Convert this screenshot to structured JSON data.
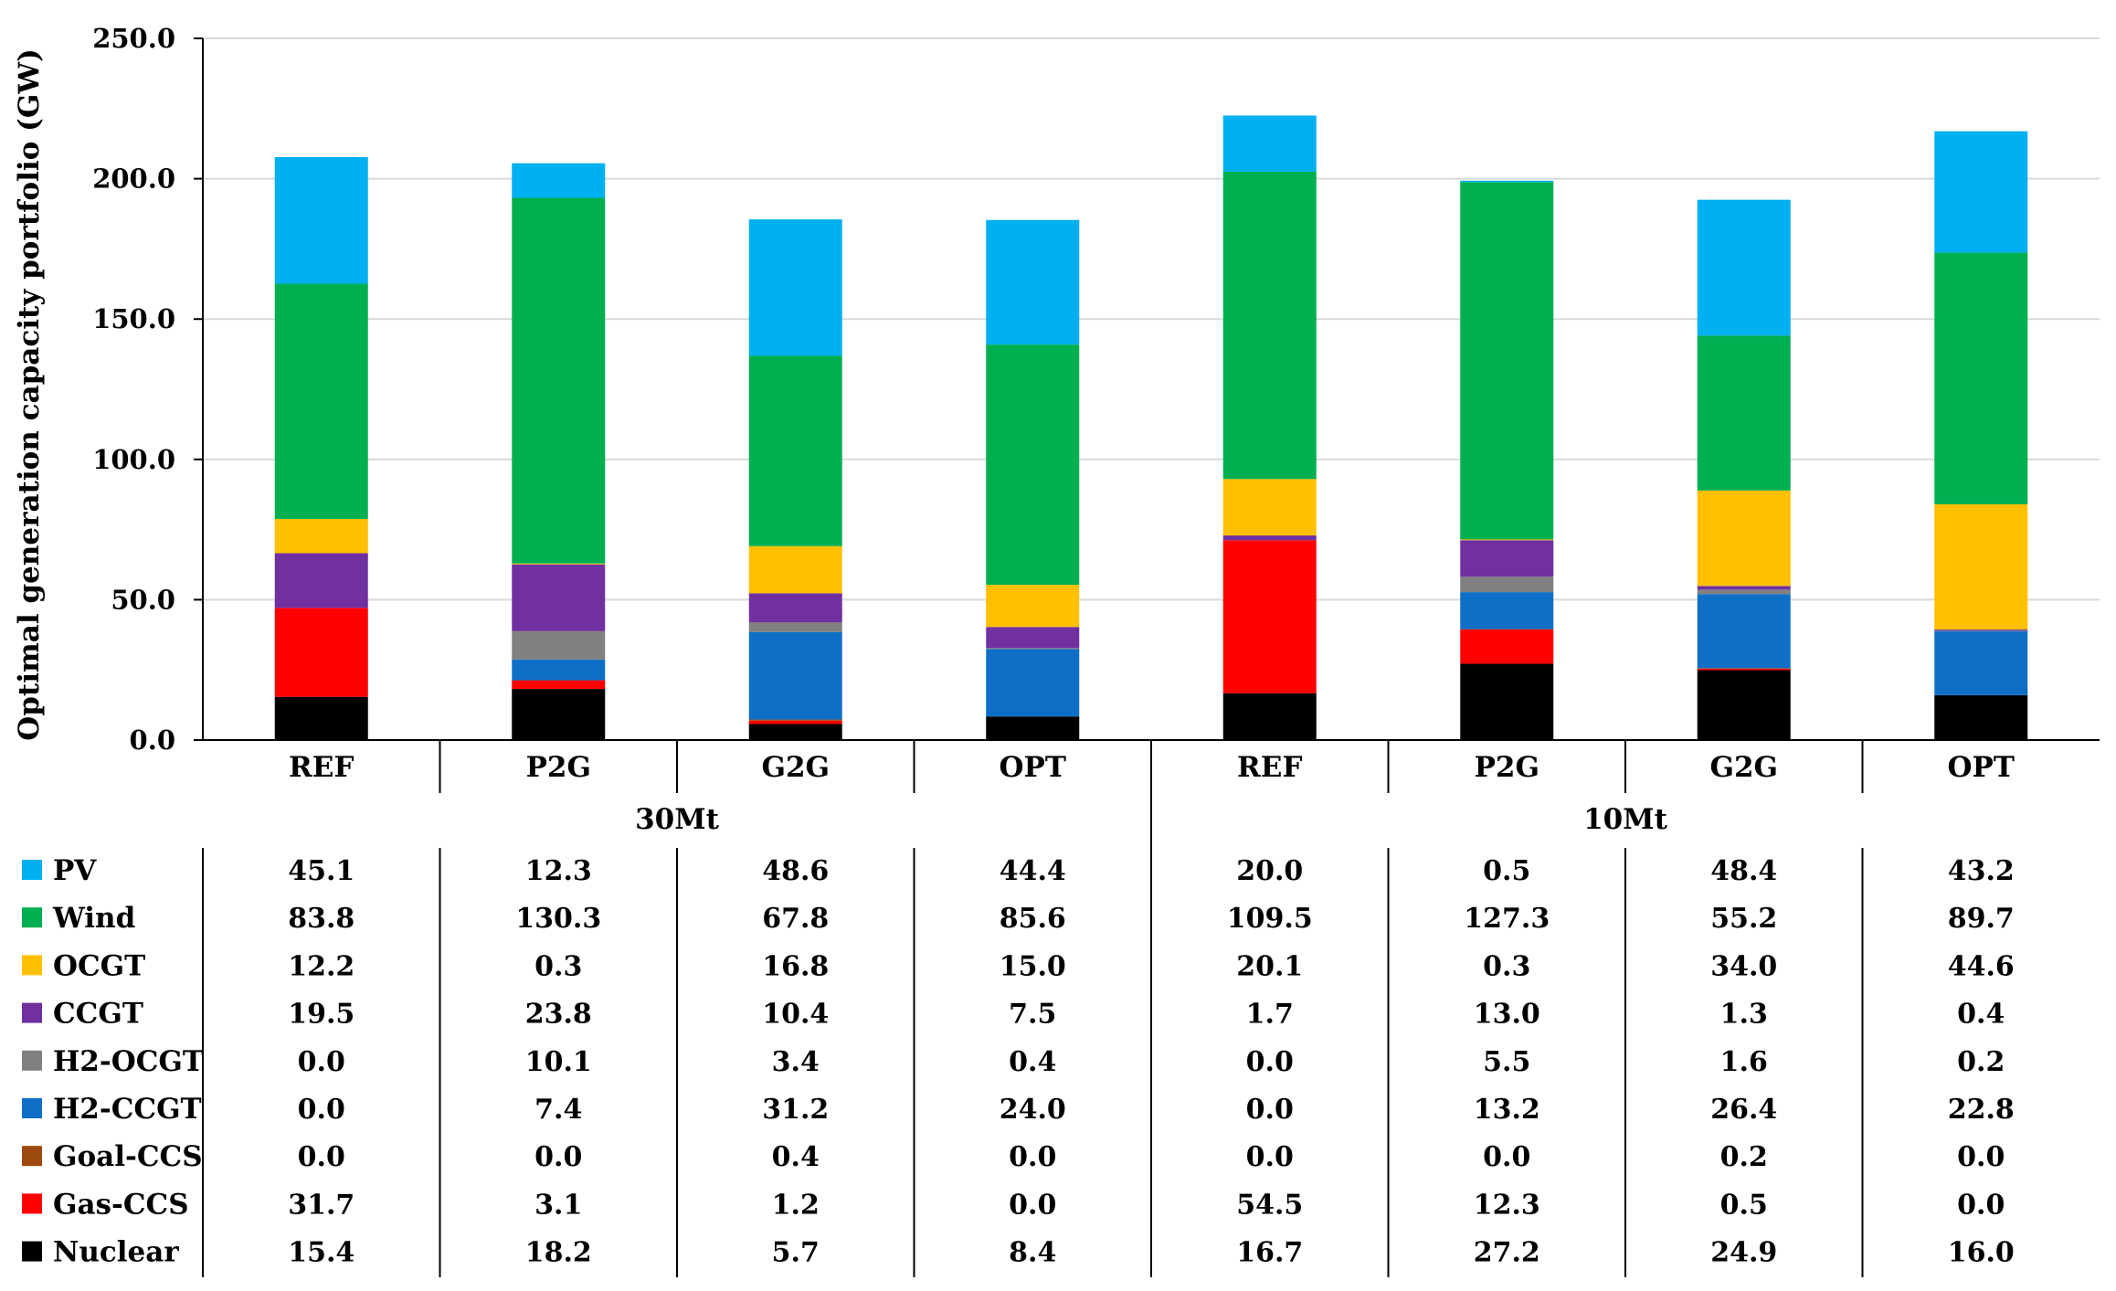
{
  "chart_data": {
    "type": "bar",
    "stacked": true,
    "title": "",
    "xlabel": "",
    "ylabel": "Optimal generation capacity portfolio (GW)",
    "ylim": [
      0,
      250
    ],
    "yticks": [
      "0.0",
      "50.0",
      "100.0",
      "150.0",
      "200.0",
      "250.0"
    ],
    "ytick_values": [
      0,
      50,
      100,
      150,
      200,
      250
    ],
    "grid": true,
    "groups": [
      {
        "label": "30Mt",
        "categories": [
          "REF",
          "P2G",
          "G2G",
          "OPT"
        ]
      },
      {
        "label": "10Mt",
        "categories": [
          "REF",
          "P2G",
          "G2G",
          "OPT"
        ]
      }
    ],
    "categories": [
      "REF",
      "P2G",
      "G2G",
      "OPT",
      "REF",
      "P2G",
      "G2G",
      "OPT"
    ],
    "series": [
      {
        "name": "Nuclear",
        "color": "#000000",
        "values": [
          15.4,
          18.2,
          5.7,
          8.4,
          16.7,
          27.2,
          24.9,
          16.0
        ],
        "labels": [
          "15.4",
          "18.2",
          "5.7",
          "8.4",
          "16.7",
          "27.2",
          "24.9",
          "16.0"
        ]
      },
      {
        "name": "Gas-CCS",
        "color": "#ff0000",
        "values": [
          31.7,
          3.1,
          1.2,
          0.0,
          54.5,
          12.3,
          0.5,
          0.0
        ],
        "labels": [
          "31.7",
          "3.1",
          "1.2",
          "0.0",
          "54.5",
          "12.3",
          "0.5",
          "0.0"
        ]
      },
      {
        "name": "Goal-CCS",
        "color": "#9c4a0e",
        "values": [
          0.0,
          0.0,
          0.4,
          0.0,
          0.0,
          0.0,
          0.2,
          0.0
        ],
        "labels": [
          "0.0",
          "0.0",
          "0.4",
          "0.0",
          "0.0",
          "0.0",
          "0.2",
          "0.0"
        ]
      },
      {
        "name": "H2-CCGT",
        "color": "#0f6fc6",
        "values": [
          0.0,
          7.4,
          31.2,
          24.0,
          0.0,
          13.2,
          26.4,
          22.8
        ],
        "labels": [
          "0.0",
          "7.4",
          "31.2",
          "24.0",
          "0.0",
          "13.2",
          "26.4",
          "22.8"
        ]
      },
      {
        "name": "H2-OCGT",
        "color": "#808080",
        "values": [
          0.0,
          10.1,
          3.4,
          0.4,
          0.0,
          5.5,
          1.6,
          0.2
        ],
        "labels": [
          "0.0",
          "10.1",
          "3.4",
          "0.4",
          "0.0",
          "5.5",
          "1.6",
          "0.2"
        ]
      },
      {
        "name": "CCGT",
        "color": "#7030a0",
        "values": [
          19.5,
          23.8,
          10.4,
          7.5,
          1.7,
          13.0,
          1.3,
          0.4
        ],
        "labels": [
          "19.5",
          "23.8",
          "10.4",
          "7.5",
          "1.7",
          "13.0",
          "1.3",
          "0.4"
        ]
      },
      {
        "name": "OCGT",
        "color": "#ffc000",
        "values": [
          12.2,
          0.3,
          16.8,
          15.0,
          20.1,
          0.3,
          34.0,
          44.6
        ],
        "labels": [
          "12.2",
          "0.3",
          "16.8",
          "15.0",
          "20.1",
          "0.3",
          "34.0",
          "44.6"
        ]
      },
      {
        "name": "Wind",
        "color": "#00b050",
        "values": [
          83.8,
          130.3,
          67.8,
          85.6,
          109.5,
          127.3,
          55.2,
          89.7
        ],
        "labels": [
          "83.8",
          "130.3",
          "67.8",
          "85.6",
          "109.5",
          "127.3",
          "55.2",
          "89.7"
        ]
      },
      {
        "name": "PV",
        "color": "#00b0f0",
        "values": [
          45.1,
          12.3,
          48.6,
          44.4,
          20.0,
          0.5,
          48.4,
          43.2
        ],
        "labels": [
          "45.1",
          "12.3",
          "48.6",
          "44.4",
          "20.0",
          "0.5",
          "48.4",
          "43.2"
        ]
      }
    ],
    "table_row_order": [
      "PV",
      "Wind",
      "OCGT",
      "CCGT",
      "H2-OCGT",
      "H2-CCGT",
      "Goal-CCS",
      "Gas-CCS",
      "Nuclear"
    ]
  }
}
